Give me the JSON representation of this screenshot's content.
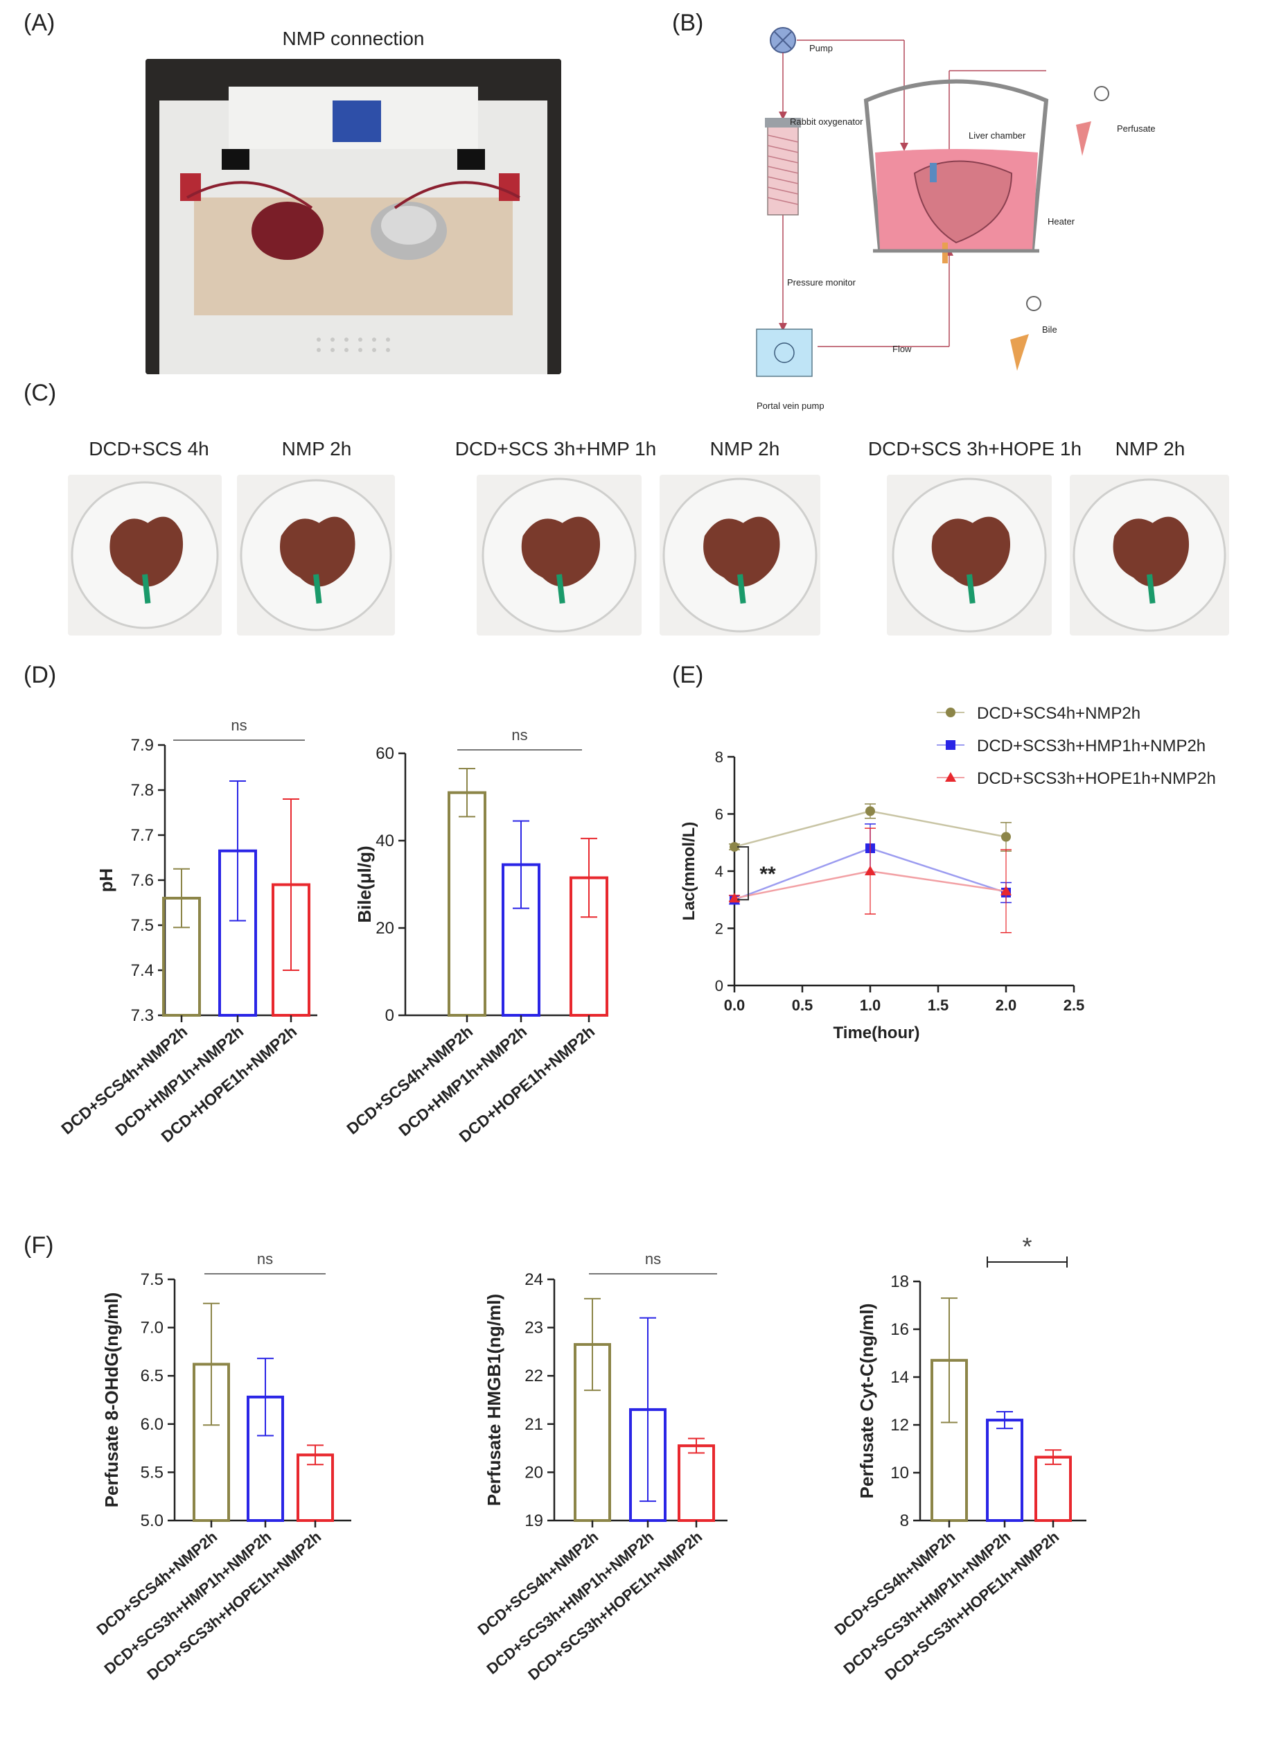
{
  "panels": {
    "A": "(A)",
    "B": "(B)",
    "C": "(C)",
    "D": "(D)",
    "E": "(E)",
    "F": "(F)"
  },
  "panelA": {
    "title": "NMP connection"
  },
  "panelB": {
    "pump": "Pump",
    "oxygenator": "Rabbit oxygenator",
    "liver_chamber": "Liver chamber",
    "perfusate": "Perfusate",
    "heater": "Heater",
    "pressure": "Pressure monitor",
    "flow": "Flow",
    "bile": "Bile",
    "portal_pump": "Portal vein pump"
  },
  "panelC": {
    "captions": [
      "DCD+SCS 4h",
      "NMP 2h",
      "DCD+SCS 3h+HMP 1h",
      "NMP 2h",
      "DCD+SCS 3h+HOPE 1h",
      "NMP 2h"
    ]
  },
  "colors": {
    "olive": "#8c8548",
    "blue": "#2a25e6",
    "red": "#e8282e",
    "axis": "#222222"
  },
  "chart_data": [
    {
      "id": "D-pH",
      "type": "bar",
      "ylabel": "pH",
      "ylim": [
        7.3,
        7.9
      ],
      "yticks": [
        "7.3",
        "7.4",
        "7.5",
        "7.6",
        "7.7",
        "7.8",
        "7.9"
      ],
      "categories": [
        "DCD+SCS4h+NMP2h",
        "DCD+HMP1h+NMP2h",
        "DCD+HOPE1h+NMP2h"
      ],
      "values": [
        7.56,
        7.665,
        7.59
      ],
      "errors": [
        0.065,
        0.155,
        0.19
      ],
      "significance": "ns"
    },
    {
      "id": "D-Bile",
      "type": "bar",
      "ylabel": "Bile(μl/g)",
      "ylim": [
        0,
        60
      ],
      "yticks": [
        "0",
        "20",
        "40",
        "60"
      ],
      "categories": [
        "DCD+SCS4h+NMP2h",
        "DCD+HMP1h+NMP2h",
        "DCD+HOPE1h+NMP2h"
      ],
      "values": [
        51,
        34.5,
        31.5
      ],
      "errors": [
        5.5,
        10,
        9
      ],
      "significance": "ns"
    },
    {
      "id": "E-Lac",
      "type": "line",
      "xlabel": "Time(hour)",
      "ylabel": "Lac(mmol/L)",
      "xlim": [
        0,
        2.5
      ],
      "ylim": [
        0,
        8
      ],
      "xticks": [
        "0.0",
        "0.5",
        "1.0",
        "1.5",
        "2.0",
        "2.5"
      ],
      "yticks": [
        "0",
        "2",
        "4",
        "6",
        "8"
      ],
      "x": [
        0,
        1,
        2
      ],
      "series": [
        {
          "name": "DCD+SCS4h+NMP2h",
          "values": [
            4.85,
            6.1,
            5.2
          ]
        },
        {
          "name": "DCD+SCS3h+HMP1h+NMP2h",
          "values": [
            3.0,
            4.8,
            3.25
          ]
        },
        {
          "name": "DCD+SCS3h+HOPE1h+NMP2h",
          "values": [
            3.05,
            4.0,
            3.3
          ]
        }
      ],
      "significance": "**"
    },
    {
      "id": "F-8OHdG",
      "type": "bar",
      "ylabel": "Perfusate 8-OHdG(ng/ml)",
      "ylim": [
        5.0,
        7.5
      ],
      "yticks": [
        "5.0",
        "5.5",
        "6.0",
        "6.5",
        "7.0",
        "7.5"
      ],
      "categories": [
        "DCD+SCS4h+NMP2h",
        "DCD+SCS3h+HMP1h+NMP2h",
        "DCD+SCS3h+HOPE1h+NMP2h"
      ],
      "values": [
        6.62,
        6.28,
        5.68
      ],
      "errors": [
        0.63,
        0.4,
        0.1
      ],
      "significance": "ns"
    },
    {
      "id": "F-HMGB1",
      "type": "bar",
      "ylabel": "Perfusate HMGB1(ng/ml)",
      "ylim": [
        19,
        24
      ],
      "yticks": [
        "19",
        "20",
        "21",
        "22",
        "23",
        "24"
      ],
      "categories": [
        "DCD+SCS4h+NMP2h",
        "DCD+SCS3h+HMP1h+NMP2h",
        "DCD+SCS3h+HOPE1h+NMP2h"
      ],
      "values": [
        22.65,
        21.3,
        20.55
      ],
      "errors": [
        0.95,
        1.9,
        0.15
      ],
      "significance": "ns"
    },
    {
      "id": "F-CytC",
      "type": "bar",
      "ylabel": "Perfusate Cyt-C(ng/ml)",
      "ylim": [
        8,
        18
      ],
      "yticks": [
        "8",
        "10",
        "12",
        "14",
        "16",
        "18"
      ],
      "categories": [
        "DCD+SCS4h+NMP2h",
        "DCD+SCS3h+HMP1h+NMP2h",
        "DCD+SCS3h+HOPE1h+NMP2h"
      ],
      "values": [
        14.7,
        12.2,
        10.65
      ],
      "errors": [
        2.6,
        0.35,
        0.3
      ],
      "significance": "*"
    }
  ]
}
